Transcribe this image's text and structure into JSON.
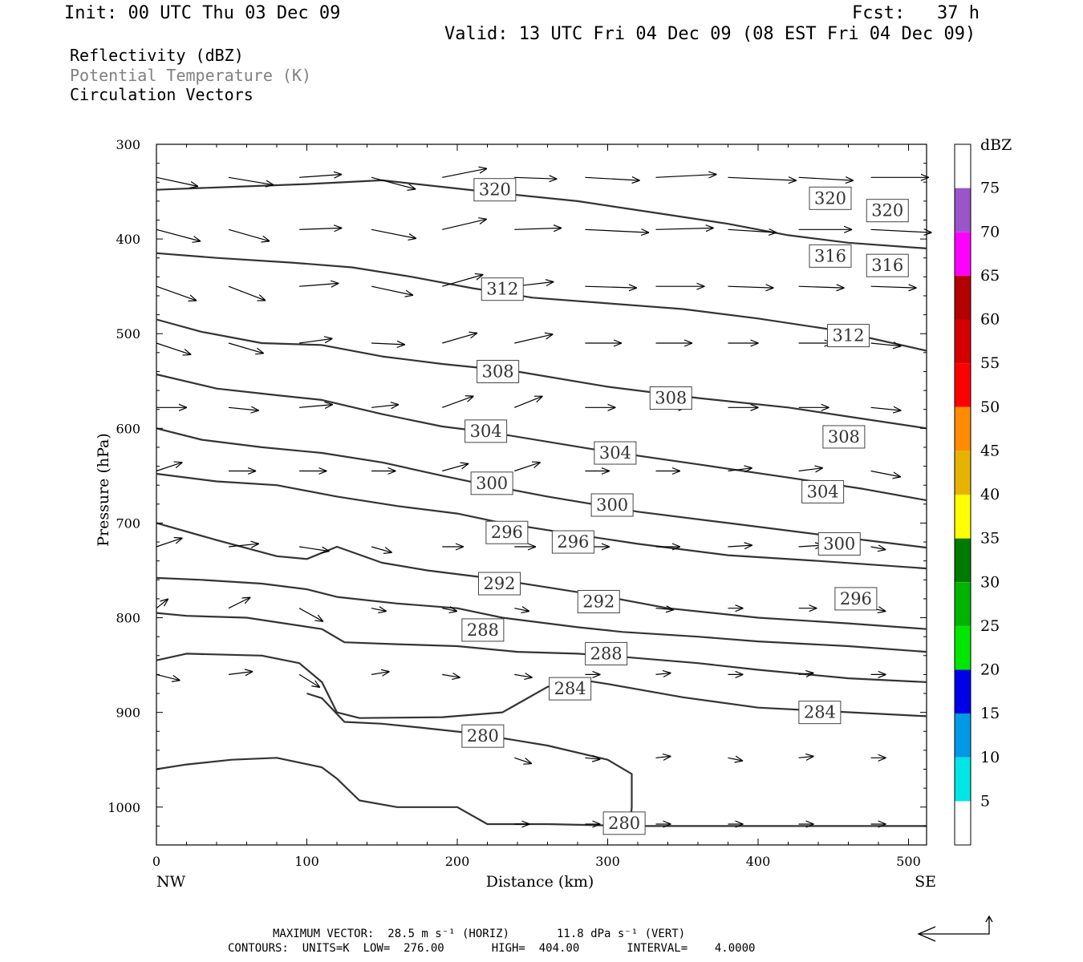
{
  "header": {
    "init": "Init: 00 UTC Thu 03 Dec 09",
    "fcst": "Fcst:   37 h",
    "valid": "Valid: 13 UTC Fri 04 Dec 09 (08 EST Fri 04 Dec 09)"
  },
  "fields": {
    "f1": "Reflectivity (dBZ)",
    "f2": "Potential Temperature (K)",
    "f3": "Circulation Vectors",
    "f2_color": "#808080"
  },
  "footer": {
    "maxvec": "MAXIMUM VECTOR:  28.5 m s⁻¹ (HORIZ)       11.8 dPa s⁻¹ (VERT)",
    "contours": "CONTOURS:  UNITS=K  LOW=  276.00       HIGH=  404.00       INTERVAL=    4.0000"
  },
  "chart_data": {
    "type": "cross-section",
    "xlabel": "Distance (km)",
    "ylabel": "Pressure (hPa)",
    "xlim": [
      0,
      512
    ],
    "ylim": [
      1040,
      300
    ],
    "x_ticks": [
      0,
      100,
      200,
      300,
      400,
      500
    ],
    "y_ticks": [
      300,
      400,
      500,
      600,
      700,
      800,
      900,
      1000
    ],
    "x_end_labels": {
      "left": "NW",
      "right": "SE"
    },
    "colorbar": {
      "unit": "dBZ",
      "levels": [
        5,
        10,
        15,
        20,
        25,
        30,
        35,
        40,
        45,
        50,
        55,
        60,
        65,
        70,
        75
      ],
      "colors": [
        "#ffffff",
        "#00e5e5",
        "#0099e6",
        "#0000e6",
        "#00e600",
        "#00b400",
        "#007a00",
        "#ffff00",
        "#e6b400",
        "#ff8c00",
        "#ff0000",
        "#d40000",
        "#b40000",
        "#ff00ff",
        "#9955c9",
        "#ffffff"
      ]
    },
    "theta_contours": [
      {
        "value": 280,
        "points": [
          [
            0,
            960
          ],
          [
            20,
            955
          ],
          [
            50,
            950
          ],
          [
            80,
            948
          ],
          [
            110,
            958
          ],
          [
            120,
            970
          ],
          [
            135,
            993
          ],
          [
            160,
            1000
          ],
          [
            200,
            1000
          ],
          [
            220,
            1018
          ],
          [
            260,
            1018
          ],
          [
            320,
            1020
          ],
          [
            400,
            1020
          ],
          [
            512,
            1020
          ]
        ]
      },
      {
        "value": 280,
        "points": [
          [
            100,
            880
          ],
          [
            110,
            885
          ],
          [
            125,
            910
          ],
          [
            150,
            912
          ],
          [
            175,
            916
          ],
          [
            210,
            922
          ],
          [
            260,
            935
          ],
          [
            300,
            950
          ],
          [
            316,
            965
          ],
          [
            316,
            1000
          ],
          [
            315,
            1020
          ]
        ]
      },
      {
        "value": 284,
        "points": [
          [
            0,
            845
          ],
          [
            20,
            838
          ],
          [
            70,
            840
          ],
          [
            95,
            848
          ],
          [
            110,
            868
          ],
          [
            120,
            900
          ],
          [
            135,
            906
          ],
          [
            190,
            905
          ],
          [
            230,
            900
          ],
          [
            260,
            873
          ],
          [
            280,
            865
          ],
          [
            300,
            870
          ],
          [
            350,
            884
          ],
          [
            400,
            895
          ],
          [
            450,
            899
          ],
          [
            512,
            904
          ]
        ]
      },
      {
        "value": 288,
        "points": [
          [
            0,
            795
          ],
          [
            20,
            798
          ],
          [
            60,
            800
          ],
          [
            110,
            812
          ],
          [
            125,
            826
          ],
          [
            160,
            828
          ],
          [
            200,
            830
          ],
          [
            240,
            836
          ],
          [
            280,
            838
          ],
          [
            300,
            840
          ],
          [
            360,
            848
          ],
          [
            400,
            855
          ],
          [
            460,
            864
          ],
          [
            512,
            868
          ]
        ]
      },
      {
        "value": 292,
        "points": [
          [
            0,
            758
          ],
          [
            30,
            760
          ],
          [
            70,
            764
          ],
          [
            100,
            770
          ],
          [
            120,
            778
          ],
          [
            160,
            785
          ],
          [
            200,
            790
          ],
          [
            230,
            800
          ],
          [
            280,
            810
          ],
          [
            310,
            815
          ],
          [
            360,
            820
          ],
          [
            400,
            825
          ],
          [
            460,
            830
          ],
          [
            512,
            836
          ]
        ]
      },
      {
        "value": 296,
        "points": [
          [
            0,
            700
          ],
          [
            40,
            718
          ],
          [
            80,
            735
          ],
          [
            100,
            738
          ],
          [
            120,
            725
          ],
          [
            150,
            742
          ],
          [
            180,
            750
          ],
          [
            220,
            758
          ],
          [
            260,
            768
          ],
          [
            300,
            778
          ],
          [
            340,
            790
          ],
          [
            400,
            800
          ],
          [
            460,
            806
          ],
          [
            512,
            812
          ]
        ]
      },
      {
        "value": 300,
        "points": [
          [
            0,
            648
          ],
          [
            40,
            656
          ],
          [
            80,
            660
          ],
          [
            120,
            672
          ],
          [
            160,
            682
          ],
          [
            200,
            690
          ],
          [
            230,
            700
          ],
          [
            270,
            710
          ],
          [
            320,
            722
          ],
          [
            380,
            734
          ],
          [
            440,
            740
          ],
          [
            512,
            748
          ]
        ]
      },
      {
        "value": 304,
        "points": [
          [
            0,
            600
          ],
          [
            30,
            612
          ],
          [
            70,
            620
          ],
          [
            110,
            626
          ],
          [
            150,
            636
          ],
          [
            190,
            650
          ],
          [
            220,
            660
          ],
          [
            260,
            672
          ],
          [
            320,
            688
          ],
          [
            380,
            700
          ],
          [
            440,
            712
          ],
          [
            512,
            726
          ]
        ]
      },
      {
        "value": 308,
        "points": [
          [
            0,
            543
          ],
          [
            40,
            558
          ],
          [
            80,
            565
          ],
          [
            110,
            570
          ],
          [
            150,
            585
          ],
          [
            190,
            598
          ],
          [
            225,
            605
          ],
          [
            290,
            622
          ],
          [
            360,
            638
          ],
          [
            420,
            652
          ],
          [
            470,
            664
          ],
          [
            512,
            676
          ]
        ]
      },
      {
        "value": 312,
        "points": [
          [
            0,
            485
          ],
          [
            30,
            498
          ],
          [
            70,
            510
          ],
          [
            110,
            512
          ],
          [
            150,
            524
          ],
          [
            190,
            532
          ],
          [
            240,
            540
          ],
          [
            300,
            556
          ],
          [
            360,
            568
          ],
          [
            420,
            578
          ],
          [
            470,
            590
          ],
          [
            512,
            600
          ]
        ]
      },
      {
        "value": 316,
        "points": [
          [
            0,
            415
          ],
          [
            40,
            420
          ],
          [
            90,
            425
          ],
          [
            130,
            430
          ],
          [
            170,
            440
          ],
          [
            210,
            452
          ],
          [
            250,
            462
          ],
          [
            300,
            468
          ],
          [
            350,
            474
          ],
          [
            400,
            484
          ],
          [
            450,
            496
          ],
          [
            512,
            518
          ]
        ]
      },
      {
        "value": 320,
        "points": [
          [
            0,
            348
          ],
          [
            50,
            345
          ],
          [
            100,
            342
          ],
          [
            150,
            338
          ],
          [
            190,
            345
          ],
          [
            230,
            352
          ],
          [
            280,
            360
          ],
          [
            330,
            372
          ],
          [
            380,
            384
          ],
          [
            420,
            396
          ],
          [
            460,
            404
          ],
          [
            512,
            410
          ]
        ]
      }
    ]
  }
}
